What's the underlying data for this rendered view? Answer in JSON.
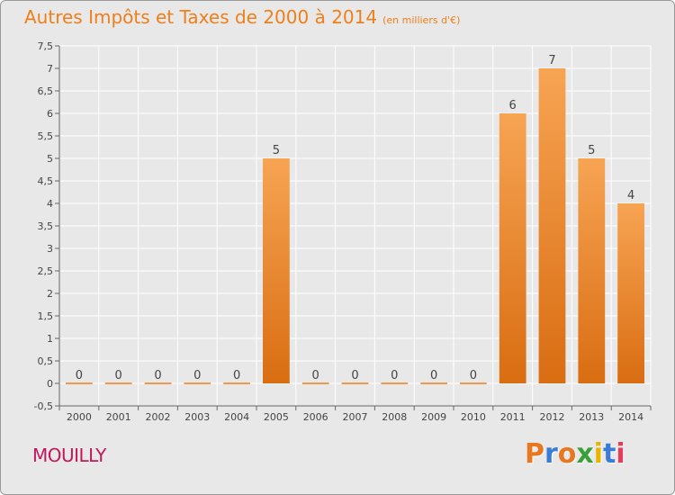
{
  "title": "Autres Impôts et Taxes de 2000 à 2014",
  "subtitle": "(en milliers d'€)",
  "commune": "MOUILLY",
  "logo": {
    "letters": [
      "P",
      "r",
      "o",
      "x",
      "i",
      "t",
      "i"
    ],
    "colors": [
      "#e87722",
      "#3a7bd5",
      "#e87722",
      "#3aa03a",
      "#e8b400",
      "#3a7bd5",
      "#e83d5a"
    ]
  },
  "colors": {
    "accent": "#ef7f1a",
    "commune": "#c2185b",
    "bar_top": "#f7a453",
    "bar_bottom": "#d96d12"
  },
  "chart_data": {
    "type": "bar",
    "title": "Autres Impôts et Taxes de 2000 à 2014",
    "subtitle": "(en milliers d'€)",
    "categories": [
      "2000",
      "2001",
      "2002",
      "2003",
      "2004",
      "2005",
      "2006",
      "2007",
      "2008",
      "2009",
      "2010",
      "2011",
      "2012",
      "2013",
      "2014"
    ],
    "values": [
      0,
      0,
      0,
      0,
      0,
      5,
      0,
      0,
      0,
      0,
      0,
      6,
      7,
      5,
      4
    ],
    "value_labels": [
      "0",
      "0",
      "0",
      "0",
      "0",
      "5",
      "0",
      "0",
      "0",
      "0",
      "0",
      "6",
      "7",
      "5",
      "4"
    ],
    "ylim": [
      -0.5,
      7.5
    ],
    "yticks": [
      -0.5,
      0,
      0.5,
      1,
      1.5,
      2,
      2.5,
      3,
      3.5,
      4,
      4.5,
      5,
      5.5,
      6,
      6.5,
      7,
      7.5
    ],
    "ytick_labels": [
      "-0,5",
      "0",
      "0,5",
      "1",
      "1,5",
      "2",
      "2,5",
      "3",
      "3,5",
      "4",
      "4,5",
      "5",
      "5,5",
      "6",
      "6,5",
      "7",
      "7,5"
    ],
    "xlabel": "",
    "ylabel": "",
    "grid": true
  }
}
